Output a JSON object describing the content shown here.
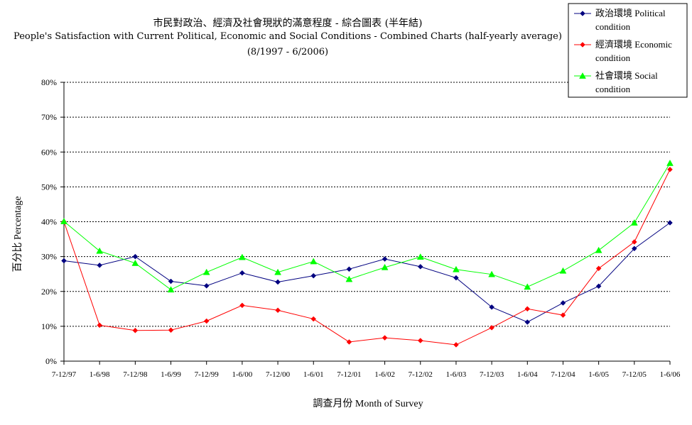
{
  "chart_data": {
    "type": "line",
    "title_lines": [
      "市民對政治、經濟及社會現狀的滿意程度 - 綜合圖表 (半年結)",
      "People's Satisfaction with Current Political, Economic and Social Conditions - Combined Charts (half-yearly average)",
      "(8/1997 - 6/2006)"
    ],
    "xlabel": "調查月份 Month of Survey",
    "ylabel": "百分比 Percentage",
    "ylim": [
      0,
      80
    ],
    "yticks": [
      0,
      10,
      20,
      30,
      40,
      50,
      60,
      70,
      80
    ],
    "ytick_labels": [
      "0%",
      "10%",
      "20%",
      "30%",
      "40%",
      "50%",
      "60%",
      "70%",
      "80%"
    ],
    "grid": "horizontal dashed",
    "legend_position": "top-right",
    "categories": [
      "7-12/97",
      "1-6/98",
      "7-12/98",
      "1-6/99",
      "7-12/99",
      "1-6/00",
      "7-12/00",
      "1-6/01",
      "7-12/01",
      "1-6/02",
      "7-12/02",
      "1-6/03",
      "7-12/03",
      "1-6/04",
      "7-12/04",
      "1-6/05",
      "7-12/05",
      "1-6/06"
    ],
    "series": [
      {
        "name_lines": [
          "政治環境 Political",
          "condition"
        ],
        "color": "#000080",
        "marker": "diamond",
        "values": [
          28.8,
          27.5,
          30.0,
          22.9,
          21.6,
          25.3,
          22.7,
          24.5,
          26.4,
          29.3,
          27.1,
          23.9,
          15.5,
          11.2,
          16.7,
          21.5,
          32.3,
          39.7
        ]
      },
      {
        "name_lines": [
          "經濟環境 Economic",
          "condition"
        ],
        "color": "#ff0000",
        "marker": "diamond",
        "values": [
          40.0,
          10.3,
          8.8,
          8.9,
          11.5,
          16.0,
          14.6,
          12.1,
          5.5,
          6.7,
          5.9,
          4.7,
          9.6,
          15.0,
          13.2,
          26.6,
          34.2,
          55.0
        ]
      },
      {
        "name_lines": [
          "社會環境 Social",
          "condition"
        ],
        "color": "#00ff00",
        "marker": "triangle",
        "values": [
          40.1,
          31.6,
          28.1,
          20.5,
          25.5,
          29.8,
          25.5,
          28.6,
          23.5,
          26.9,
          29.9,
          26.3,
          24.9,
          21.3,
          25.9,
          31.8,
          39.7,
          56.8
        ]
      }
    ]
  }
}
